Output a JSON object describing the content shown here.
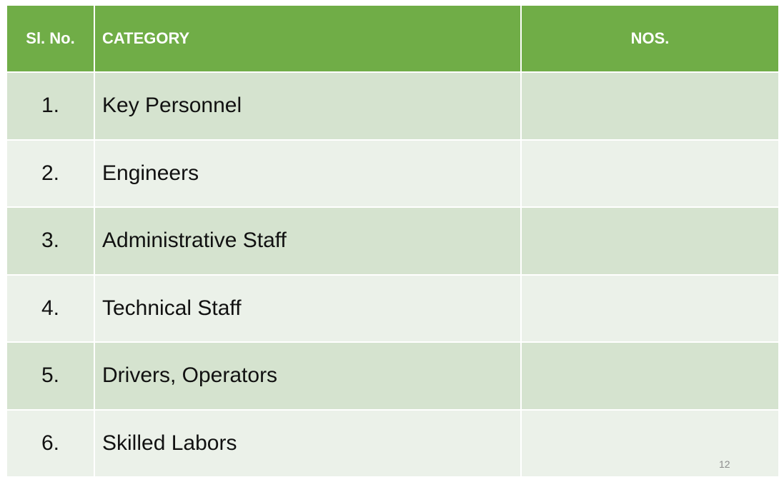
{
  "table": {
    "headers": {
      "sl_no": "Sl. No.",
      "category": "CATEGORY",
      "nos": "NOS."
    },
    "rows": [
      {
        "sl": "1.",
        "category": "Key Personnel",
        "nos": ""
      },
      {
        "sl": "2.",
        "category": "Engineers",
        "nos": ""
      },
      {
        "sl": "3.",
        "category": "Administrative Staff",
        "nos": ""
      },
      {
        "sl": "4.",
        "category": "Technical Staff",
        "nos": ""
      },
      {
        "sl": "5.",
        "category": "Drivers, Operators",
        "nos": ""
      },
      {
        "sl": "6.",
        "category": "Skilled Labors",
        "nos": ""
      }
    ]
  },
  "footer": {
    "page_number": "12"
  },
  "colors": {
    "header_bg": "#70ad47",
    "row_odd_bg": "#d5e3cf",
    "row_even_bg": "#ebf1e9"
  }
}
